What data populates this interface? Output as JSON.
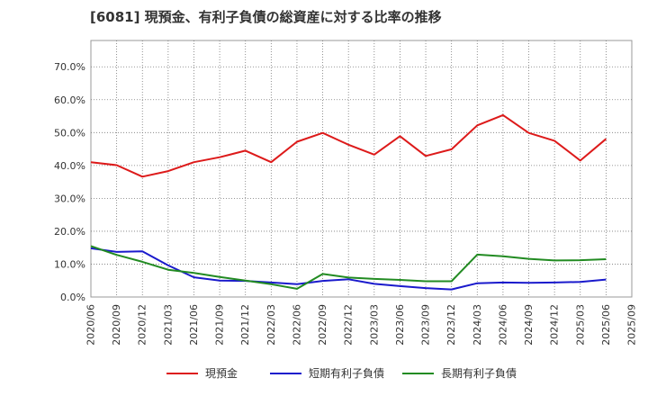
{
  "chart_data": {
    "type": "line",
    "title": "[6081]  現預金、有利子負債の総資産に対する比率の推移",
    "xlabel": "",
    "ylabel": "",
    "ylim": [
      0,
      78
    ],
    "yticks": [
      0,
      10,
      20,
      30,
      40,
      50,
      60,
      70
    ],
    "ytick_labels": [
      "0.0%",
      "10.0%",
      "20.0%",
      "30.0%",
      "40.0%",
      "50.0%",
      "60.0%",
      "70.0%"
    ],
    "x": [
      "2020/06",
      "2020/09",
      "2020/12",
      "2021/03",
      "2021/06",
      "2021/09",
      "2021/12",
      "2022/03",
      "2022/06",
      "2022/09",
      "2022/12",
      "2023/03",
      "2023/06",
      "2023/09",
      "2023/12",
      "2024/03",
      "2024/06",
      "2024/09",
      "2024/12",
      "2025/03",
      "2025/06",
      "2025/09"
    ],
    "series": [
      {
        "name": "現預金",
        "color": "#dd1a1a",
        "values": [
          41.0,
          40.1,
          36.6,
          38.3,
          41.0,
          42.5,
          44.5,
          41.0,
          47.2,
          49.9,
          46.3,
          43.3,
          48.9,
          42.9,
          44.9,
          52.2,
          55.3,
          49.9,
          47.5,
          41.5,
          48.1,
          null
        ]
      },
      {
        "name": "短期有利子負債",
        "color": "#1a1acc",
        "values": [
          14.8,
          13.7,
          13.9,
          9.6,
          6.0,
          5.0,
          4.9,
          4.4,
          3.9,
          4.9,
          5.4,
          4.0,
          3.3,
          2.7,
          2.3,
          4.2,
          4.4,
          4.3,
          4.4,
          4.6,
          5.3,
          null
        ]
      },
      {
        "name": "長期有利子負債",
        "color": "#228b22",
        "values": [
          15.5,
          12.8,
          10.7,
          8.3,
          7.3,
          6.1,
          5.0,
          3.9,
          2.5,
          7.0,
          5.9,
          5.5,
          5.2,
          4.8,
          4.8,
          12.9,
          12.4,
          11.6,
          11.1,
          11.2,
          11.5,
          null
        ]
      }
    ]
  }
}
